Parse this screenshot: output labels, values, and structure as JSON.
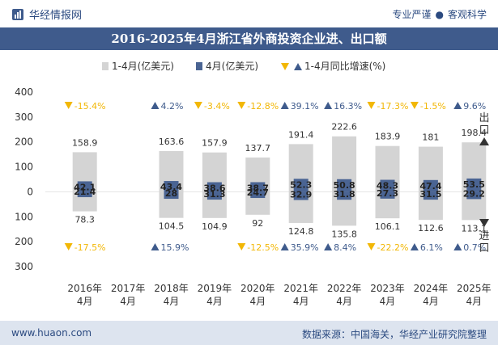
{
  "header": {
    "brand": "华经情报网",
    "tag1": "专业严谨",
    "tag2": "客观科学"
  },
  "footer": {
    "site": "www.huaon.com",
    "source": "数据来源：中国海关，华经产业研究院整理"
  },
  "chart_data": {
    "type": "bar",
    "title": "2016-2025年4月浙江省外商投资企业进、出口额",
    "categories": [
      "2016年\n4月",
      "2017年\n4月",
      "2018年\n4月",
      "2019年\n4月",
      "2020年\n4月",
      "2021年\n4月",
      "2022年\n4月",
      "2023年\n4月",
      "2024年\n4月",
      "2025年\n4月"
    ],
    "ylim": [
      -300,
      400
    ],
    "yticks": [
      -300,
      -200,
      -100,
      0,
      100,
      200,
      300,
      400
    ],
    "ytick_labels": [
      "300",
      "200",
      "100",
      "0",
      "100",
      "200",
      "300",
      "400"
    ],
    "legend": [
      "1-4月(亿美元)",
      "4月(亿美元)",
      "1-4月同比增速(%)"
    ],
    "side_labels": {
      "export": "出口",
      "import": "进口"
    },
    "series": {
      "export_ytd": [
        158.9,
        null,
        163.6,
        157.9,
        137.7,
        191.4,
        222.6,
        183.9,
        181,
        198.4
      ],
      "export_month": [
        42.1,
        null,
        43.4,
        38.6,
        38.7,
        52.3,
        50.8,
        48.3,
        47.4,
        53.5
      ],
      "import_ytd": [
        78.3,
        null,
        104.5,
        104.9,
        92,
        124.8,
        135.8,
        106.1,
        112.6,
        113.1
      ],
      "import_month": [
        21.4,
        null,
        28,
        31.3,
        24.7,
        32.9,
        31.8,
        27.3,
        31.5,
        29.2
      ],
      "export_growth": [
        -15.4,
        null,
        4.2,
        -3.4,
        -12.8,
        39.1,
        16.3,
        -17.3,
        -1.5,
        9.6
      ],
      "import_growth": [
        -17.5,
        null,
        15.9,
        null,
        -12.5,
        35.9,
        8.4,
        -22.2,
        6.1,
        0.7
      ]
    },
    "colors": {
      "ytd": "#d4d4d4",
      "month": "#4a6493",
      "up": "#3f5b8c",
      "down": "#f2b705"
    }
  }
}
